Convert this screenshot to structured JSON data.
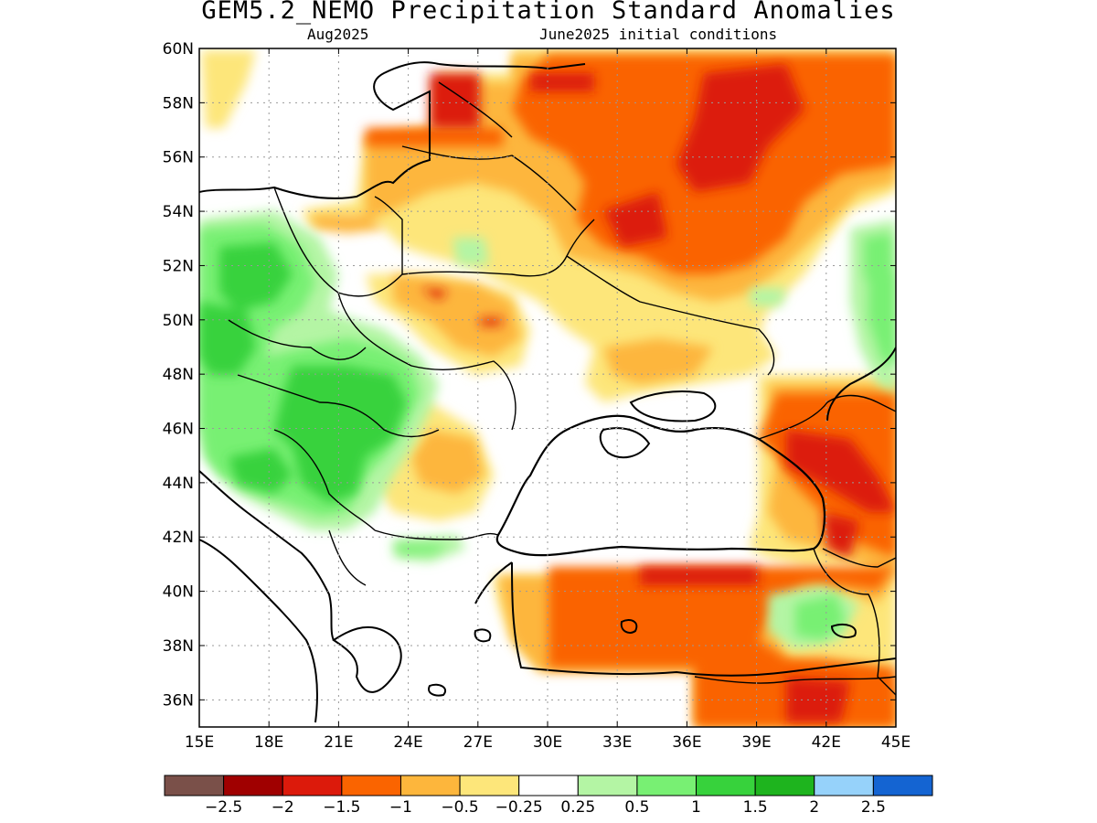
{
  "title": "GEM5.2_NEMO Precipitation Standard Anomalies",
  "subtitle_left": "Aug2025",
  "subtitle_right": "June2025 initial conditions",
  "map": {
    "lon_range": [
      15,
      45
    ],
    "lat_range": [
      35,
      60
    ],
    "lon_ticks": [
      "15E",
      "18E",
      "21E",
      "24E",
      "27E",
      "30E",
      "33E",
      "36E",
      "39E",
      "42E",
      "45E"
    ],
    "lat_ticks": [
      "60N",
      "58N",
      "56N",
      "54N",
      "52N",
      "50N",
      "48N",
      "46N",
      "44N",
      "42N",
      "40N",
      "38N",
      "36N"
    ],
    "grid": "dotted"
  },
  "colorbar": {
    "colors": [
      "#7a5049",
      "#a00000",
      "#dc1a0b",
      "#fa6400",
      "#fdb63c",
      "#fde67a",
      "#ffffff",
      "#b4f5a4",
      "#78f073",
      "#37d23c",
      "#1eb41e",
      "#96d2fa",
      "#1464d2"
    ],
    "labels": [
      "−2.5",
      "−2",
      "−1.5",
      "−1",
      "−0.5",
      "−0.25",
      "0.25",
      "0.5",
      "1",
      "1.5",
      "2",
      "2.5"
    ]
  }
}
